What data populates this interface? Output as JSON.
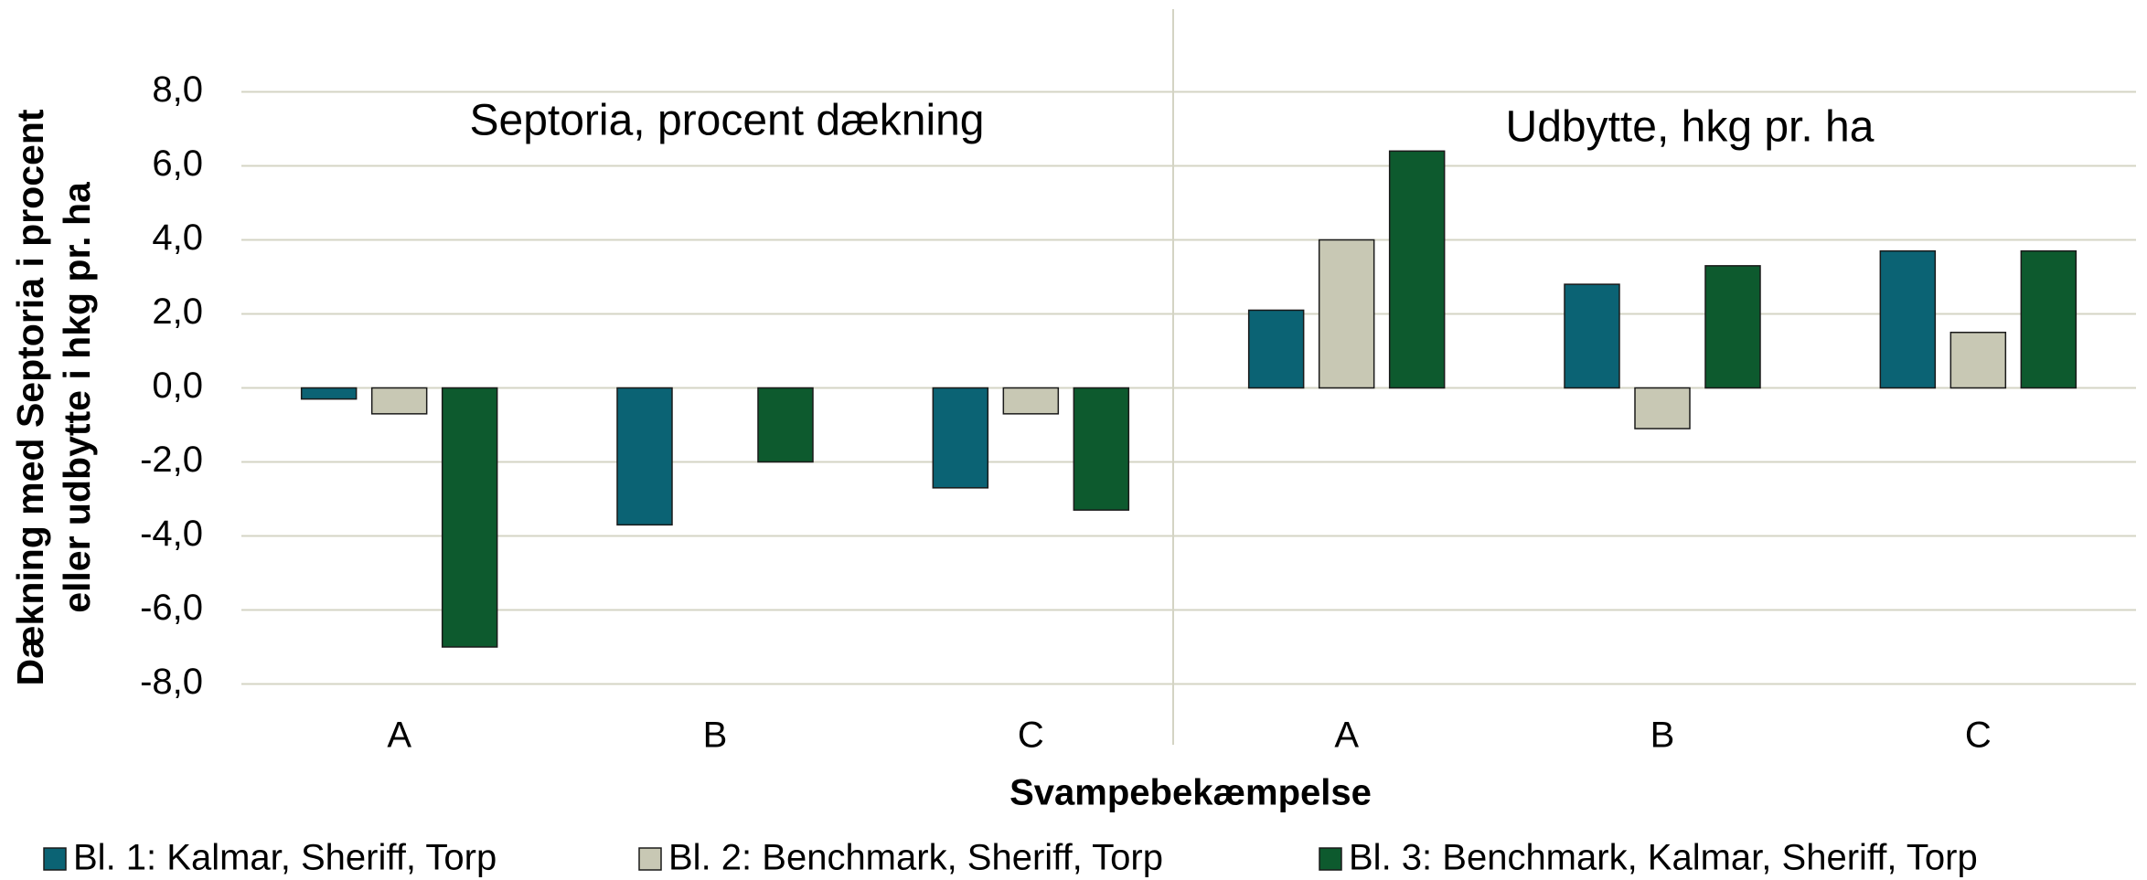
{
  "chart_data": {
    "type": "bar",
    "annotations": [
      "Septoria, procent dækning",
      "Udbytte, hkg pr. ha"
    ],
    "ylabel": [
      "Dækning med Septoria i procent",
      "eller udbytte i hkg pr. ha"
    ],
    "xlabel": "Svampebekæmpelse",
    "categories": [
      "A",
      "B",
      "C",
      "A",
      "B",
      "C"
    ],
    "series": [
      {
        "name": "Bl. 1: Kalmar, Sheriff, Torp",
        "color": "#0b6374",
        "values": [
          -0.3,
          -3.7,
          -2.7,
          2.1,
          2.8,
          3.7
        ]
      },
      {
        "name": "Bl. 2: Benchmark, Sheriff, Torp",
        "color": "#c8c8b4",
        "values": [
          -0.7,
          null,
          -0.7,
          4.0,
          -1.1,
          1.5
        ]
      },
      {
        "name": "Bl. 3: Benchmark, Kalmar, Sheriff, Torp",
        "color": "#0d5a2e",
        "values": [
          -7.0,
          -2.0,
          -3.3,
          6.4,
          3.3,
          3.7
        ]
      }
    ],
    "ylim": [
      -8,
      8
    ],
    "yticks": [
      {
        "value": -8,
        "label": "-8,0"
      },
      {
        "value": -6,
        "label": "-6,0"
      },
      {
        "value": -4,
        "label": "-4,0"
      },
      {
        "value": -2,
        "label": "-2,0"
      },
      {
        "value": 0,
        "label": "0,0"
      },
      {
        "value": 2,
        "label": "2,0"
      },
      {
        "value": 4,
        "label": "4,0"
      },
      {
        "value": 6,
        "label": "6,0"
      },
      {
        "value": 8,
        "label": "8,0"
      }
    ],
    "grid": true,
    "legend": "bottom"
  }
}
